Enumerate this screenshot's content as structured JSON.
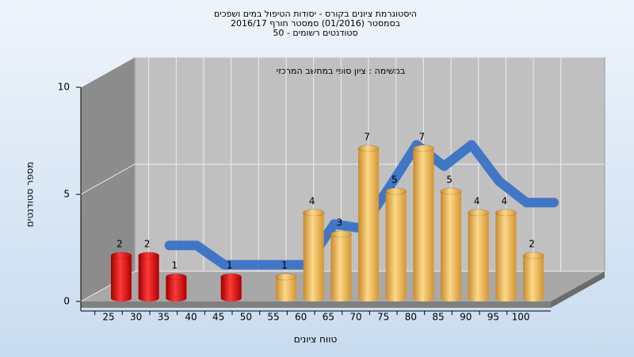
{
  "chart_data": {
    "type": "bar",
    "title_lines": [
      "היסטוגרמת ציונים בקורס - יסודות הטיפול במים ושפכים",
      "בסמסטר  (01/2016)  סמסטר חורף 2016/17",
      "סטודנטים רשומים - 50"
    ],
    "subtitle": "במשימה : ציון סופי במחשב המרכזי",
    "x_label": "טווח ציונים",
    "y_label": "מספר סטודנטים",
    "categories": [
      "25",
      "30",
      "35",
      "40",
      "45",
      "50",
      "55",
      "60",
      "65",
      "70",
      "75",
      "80",
      "85",
      "90",
      "95",
      "100"
    ],
    "values": [
      2,
      2,
      1,
      0,
      1,
      0,
      1,
      4,
      3,
      7,
      5,
      7,
      5,
      4,
      4,
      2
    ],
    "bar_colors": [
      "red",
      "red",
      "red",
      "red",
      "red",
      "red",
      "orange",
      "orange",
      "orange",
      "orange",
      "orange",
      "orange",
      "orange",
      "orange",
      "orange",
      "orange"
    ],
    "curve": {
      "color": "#3a72c6",
      "values": [
        null,
        1.8,
        1.8,
        0.9,
        0.9,
        0.9,
        0.9,
        2.8,
        2.6,
        4.5,
        6.5,
        5.5,
        6.5,
        4.8,
        3.8,
        3.8
      ]
    },
    "ylim": [
      0,
      10
    ],
    "yticks": [
      0,
      5,
      10
    ],
    "grid": true
  }
}
